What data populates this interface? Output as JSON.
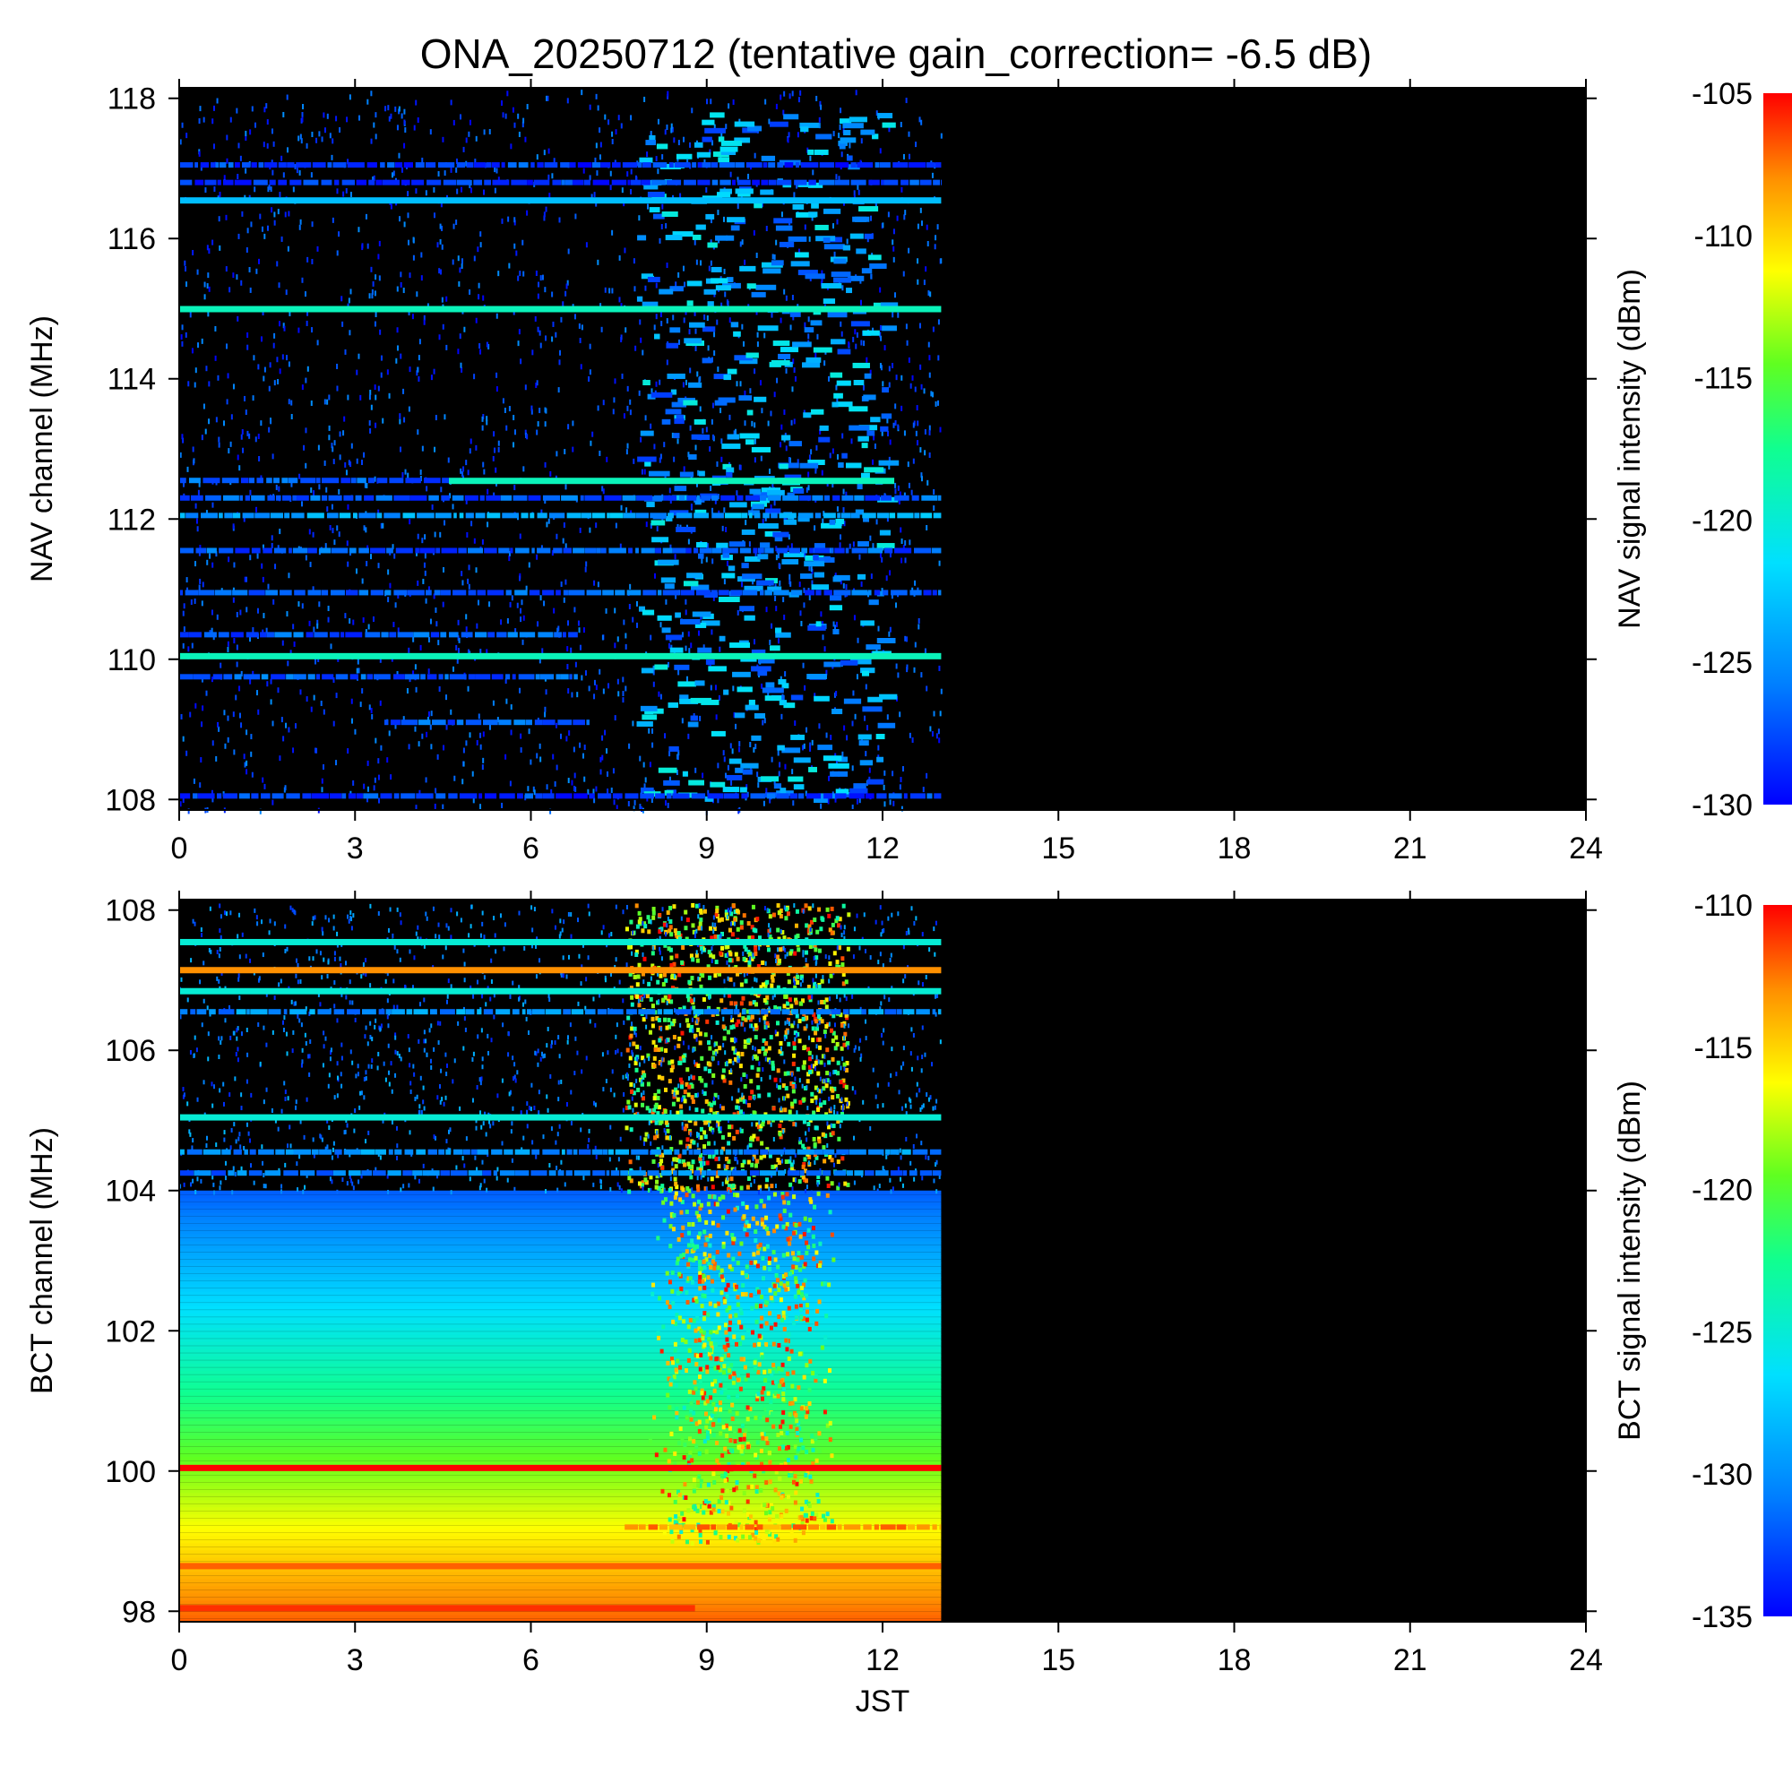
{
  "title": "ONA_20250712 (tentative gain_correction= -6.5 dB)",
  "chart_data": [
    {
      "type": "heatmap",
      "name": "NAV",
      "ylabel": "NAV channel (MHz)",
      "xlabel": "",
      "colorbar_label": "NAV signal intensity (dBm)",
      "xlim": [
        0,
        24
      ],
      "ylim": [
        107.85,
        118.15
      ],
      "xticks": [
        0,
        3,
        6,
        9,
        12,
        15,
        18,
        21,
        24
      ],
      "yticks": [
        108,
        110,
        112,
        114,
        116,
        118
      ],
      "clim": [
        -130,
        -105
      ],
      "cticks": [
        -130,
        -125,
        -120,
        -115,
        -110,
        -105
      ],
      "data_end_hour": 13.0,
      "background_level": "none",
      "bands": [
        {
          "freq": 116.55,
          "start": 0,
          "end": 13,
          "level": -123,
          "spotty": false
        },
        {
          "freq": 115.0,
          "start": 0,
          "end": 13,
          "level": -119,
          "spotty": false
        },
        {
          "freq": 112.55,
          "start": 4.6,
          "end": 12.2,
          "level": -119,
          "spotty": false
        },
        {
          "freq": 112.55,
          "start": 0,
          "end": 4.6,
          "level": -127,
          "spotty": true
        },
        {
          "freq": 112.3,
          "start": 0,
          "end": 13,
          "level": -127,
          "spotty": true
        },
        {
          "freq": 112.05,
          "start": 0,
          "end": 13,
          "level": -124,
          "spotty": true
        },
        {
          "freq": 111.55,
          "start": 0,
          "end": 13,
          "level": -127,
          "spotty": true
        },
        {
          "freq": 110.95,
          "start": 0,
          "end": 13,
          "level": -127,
          "spotty": true
        },
        {
          "freq": 110.35,
          "start": 0,
          "end": 6.8,
          "level": -127,
          "spotty": true
        },
        {
          "freq": 110.05,
          "start": 0,
          "end": 13,
          "level": -119,
          "spotty": false
        },
        {
          "freq": 109.75,
          "start": 0,
          "end": 6.8,
          "level": -127,
          "spotty": true
        },
        {
          "freq": 109.1,
          "start": 3.5,
          "end": 7.0,
          "level": -127,
          "spotty": true
        },
        {
          "freq": 108.05,
          "start": 0,
          "end": 13,
          "level": -128,
          "spotty": true
        },
        {
          "freq": 117.05,
          "start": 0,
          "end": 13,
          "level": -128,
          "spotty": true
        },
        {
          "freq": 116.8,
          "start": 0,
          "end": 13,
          "level": -128,
          "spotty": true
        }
      ]
    },
    {
      "type": "heatmap",
      "name": "BCT",
      "ylabel": "BCT channel (MHz)",
      "xlabel": "JST",
      "colorbar_label": "BCT signal intensity (dBm)",
      "xlim": [
        0,
        24
      ],
      "ylim": [
        97.85,
        108.15
      ],
      "xticks": [
        0,
        3,
        6,
        9,
        12,
        15,
        18,
        21,
        24
      ],
      "yticks": [
        98,
        100,
        102,
        104,
        106,
        108
      ],
      "clim": [
        -135,
        -110
      ],
      "cticks": [
        -135,
        -130,
        -125,
        -120,
        -115,
        -110
      ],
      "data_end_hour": 13.0,
      "background_level": "gradient",
      "bands": [
        {
          "freq": 107.55,
          "start": 0,
          "end": 13,
          "level": -125,
          "spotty": false
        },
        {
          "freq": 107.15,
          "start": 0,
          "end": 13,
          "level": -113,
          "spotty": false
        },
        {
          "freq": 106.85,
          "start": 0,
          "end": 13,
          "level": -125,
          "spotty": false
        },
        {
          "freq": 106.55,
          "start": 0,
          "end": 13,
          "level": -130,
          "spotty": true
        },
        {
          "freq": 105.05,
          "start": 0,
          "end": 13,
          "level": -125,
          "spotty": false
        },
        {
          "freq": 104.55,
          "start": 0,
          "end": 13,
          "level": -130,
          "spotty": true
        },
        {
          "freq": 104.25,
          "start": 0,
          "end": 13,
          "level": -131,
          "spotty": true
        },
        {
          "freq": 100.05,
          "start": 0,
          "end": 13,
          "level": -110,
          "spotty": false
        },
        {
          "freq": 98.65,
          "start": 0,
          "end": 13,
          "level": -112,
          "spotty": false
        },
        {
          "freq": 98.05,
          "start": 0,
          "end": 8.8,
          "level": -111,
          "spotty": false
        },
        {
          "freq": 99.2,
          "start": 7.6,
          "end": 13,
          "level": -113,
          "spotty": true
        }
      ]
    }
  ]
}
